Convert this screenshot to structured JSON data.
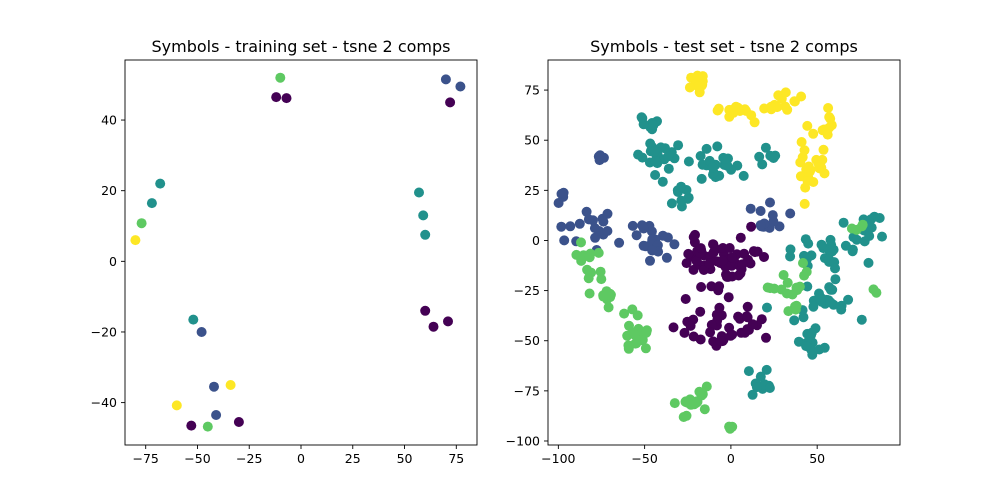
{
  "chart_data": [
    {
      "type": "scatter",
      "title": "Symbols - training set - tsne 2 comps",
      "xlabel": "",
      "ylabel": "",
      "xlim": [
        -85,
        85
      ],
      "ylim": [
        -52,
        57
      ],
      "xticks": [
        -75,
        -50,
        -25,
        0,
        25,
        50,
        75
      ],
      "yticks": [
        -40,
        -20,
        0,
        20,
        40
      ],
      "grid": false,
      "colormap": [
        "#440154",
        "#3b528b",
        "#21918c",
        "#5ec962",
        "#fde725"
      ],
      "points": [
        {
          "x": -10,
          "y": 52,
          "c": 3
        },
        {
          "x": -12,
          "y": 46.5,
          "c": 0
        },
        {
          "x": -7,
          "y": 46.2,
          "c": 0
        },
        {
          "x": 70,
          "y": 51.5,
          "c": 1
        },
        {
          "x": 77,
          "y": 49.5,
          "c": 1
        },
        {
          "x": 72,
          "y": 45,
          "c": 0
        },
        {
          "x": -68,
          "y": 22,
          "c": 2
        },
        {
          "x": -72,
          "y": 16.5,
          "c": 2
        },
        {
          "x": -77,
          "y": 10.8,
          "c": 3
        },
        {
          "x": -80,
          "y": 6,
          "c": 4
        },
        {
          "x": 57,
          "y": 19.5,
          "c": 2
        },
        {
          "x": 59,
          "y": 13,
          "c": 2
        },
        {
          "x": 60,
          "y": 7.5,
          "c": 2
        },
        {
          "x": 60,
          "y": -14,
          "c": 0
        },
        {
          "x": 64,
          "y": -18.5,
          "c": 0
        },
        {
          "x": 71,
          "y": -17,
          "c": 0
        },
        {
          "x": -52,
          "y": -16.5,
          "c": 2
        },
        {
          "x": -48,
          "y": -20,
          "c": 1
        },
        {
          "x": -34,
          "y": -35,
          "c": 4
        },
        {
          "x": -42,
          "y": -35.5,
          "c": 1
        },
        {
          "x": -41,
          "y": -43.5,
          "c": 1
        },
        {
          "x": -60,
          "y": -40.8,
          "c": 4
        },
        {
          "x": -53,
          "y": -46.5,
          "c": 0
        },
        {
          "x": -45,
          "y": -46.8,
          "c": 3
        },
        {
          "x": -30,
          "y": -45.5,
          "c": 0
        }
      ]
    },
    {
      "type": "scatter",
      "title": "Symbols - test set - tsne 2 comps",
      "xlabel": "",
      "ylabel": "",
      "xlim": [
        -106,
        98
      ],
      "ylim": [
        -102,
        90
      ],
      "xticks": [
        -100,
        -50,
        0,
        50
      ],
      "yticks": [
        -100,
        -75,
        -50,
        -25,
        0,
        25,
        50,
        75
      ],
      "grid": false,
      "colormap": [
        "#440154",
        "#3b528b",
        "#21918c",
        "#5ec962",
        "#fde725"
      ],
      "clusters": [
        {
          "c": 4,
          "cx": -20,
          "cy": 78,
          "sx": 6,
          "sy": 3,
          "n": 12,
          "seed": 11
        },
        {
          "c": 4,
          "cx": 5,
          "cy": 66,
          "sx": 6,
          "sy": 5,
          "n": 16,
          "seed": 12
        },
        {
          "c": 4,
          "cx": 30,
          "cy": 68,
          "sx": 6,
          "sy": 4,
          "n": 14,
          "seed": 13
        },
        {
          "c": 4,
          "cx": 48,
          "cy": 40,
          "sx": 6,
          "sy": 11,
          "n": 24,
          "seed": 14
        },
        {
          "c": 4,
          "cx": 56,
          "cy": 60,
          "sx": 3,
          "sy": 5,
          "n": 8,
          "seed": 15
        },
        {
          "c": 2,
          "cx": -40,
          "cy": 42,
          "sx": 9,
          "sy": 6,
          "n": 22,
          "seed": 21
        },
        {
          "c": 2,
          "cx": -5,
          "cy": 38,
          "sx": 10,
          "sy": 7,
          "n": 22,
          "seed": 22
        },
        {
          "c": 2,
          "cx": -30,
          "cy": 24,
          "sx": 7,
          "sy": 4,
          "n": 10,
          "seed": 23
        },
        {
          "c": 2,
          "cx": -48,
          "cy": 60,
          "sx": 4,
          "sy": 3,
          "n": 8,
          "seed": 24
        },
        {
          "c": 2,
          "cx": 20,
          "cy": 42,
          "sx": 4,
          "sy": 3,
          "n": 6,
          "seed": 25
        },
        {
          "c": 1,
          "cx": -78,
          "cy": 8,
          "sx": 10,
          "sy": 8,
          "n": 18,
          "seed": 31
        },
        {
          "c": 1,
          "cx": -45,
          "cy": 0,
          "sx": 8,
          "sy": 7,
          "n": 20,
          "seed": 32
        },
        {
          "c": 1,
          "cx": 20,
          "cy": 10,
          "sx": 7,
          "sy": 6,
          "n": 12,
          "seed": 33
        },
        {
          "c": 1,
          "cx": -98,
          "cy": 23,
          "sx": 1,
          "sy": 1,
          "n": 4,
          "seed": 34
        },
        {
          "c": 1,
          "cx": -76,
          "cy": 42,
          "sx": 2,
          "sy": 1,
          "n": 4,
          "seed": 35
        },
        {
          "c": 0,
          "cx": -15,
          "cy": -12,
          "sx": 9,
          "sy": 10,
          "n": 34,
          "seed": 41
        },
        {
          "c": 0,
          "cx": 5,
          "cy": -12,
          "sx": 9,
          "sy": 10,
          "n": 30,
          "seed": 42
        },
        {
          "c": 0,
          "cx": -10,
          "cy": -45,
          "sx": 10,
          "sy": 7,
          "n": 26,
          "seed": 43
        },
        {
          "c": 0,
          "cx": 10,
          "cy": -40,
          "sx": 6,
          "sy": 6,
          "n": 12,
          "seed": 44
        },
        {
          "c": 2,
          "cx": 55,
          "cy": -8,
          "sx": 12,
          "sy": 6,
          "n": 26,
          "seed": 51
        },
        {
          "c": 2,
          "cx": 78,
          "cy": 5,
          "sx": 7,
          "sy": 5,
          "n": 12,
          "seed": 52
        },
        {
          "c": 2,
          "cx": 55,
          "cy": -30,
          "sx": 12,
          "sy": 7,
          "n": 24,
          "seed": 53
        },
        {
          "c": 2,
          "cx": 45,
          "cy": -50,
          "sx": 6,
          "sy": 6,
          "n": 12,
          "seed": 54
        },
        {
          "c": 2,
          "cx": 20,
          "cy": -70,
          "sx": 6,
          "sy": 5,
          "n": 10,
          "seed": 55
        },
        {
          "c": 3,
          "cx": -85,
          "cy": -12,
          "sx": 7,
          "sy": 6,
          "n": 14,
          "seed": 61
        },
        {
          "c": 3,
          "cx": -70,
          "cy": -28,
          "sx": 4,
          "sy": 4,
          "n": 10,
          "seed": 62
        },
        {
          "c": 3,
          "cx": -55,
          "cy": -50,
          "sx": 6,
          "sy": 8,
          "n": 18,
          "seed": 63
        },
        {
          "c": 3,
          "cx": -25,
          "cy": -80,
          "sx": 8,
          "sy": 5,
          "n": 18,
          "seed": 64
        },
        {
          "c": 3,
          "cx": 35,
          "cy": -20,
          "sx": 8,
          "sy": 6,
          "n": 14,
          "seed": 65
        },
        {
          "c": 3,
          "cx": 72,
          "cy": 8,
          "sx": 3,
          "sy": 3,
          "n": 4,
          "seed": 66
        },
        {
          "c": 3,
          "cx": 85,
          "cy": -25,
          "sx": 2,
          "sy": 1,
          "n": 2,
          "seed": 67
        },
        {
          "c": 3,
          "cx": 0,
          "cy": -92,
          "sx": 1,
          "sy": 1,
          "n": 3,
          "seed": 68
        },
        {
          "c": 3,
          "cx": 38,
          "cy": -35,
          "sx": 3,
          "sy": 2,
          "n": 4,
          "seed": 69
        }
      ]
    }
  ]
}
